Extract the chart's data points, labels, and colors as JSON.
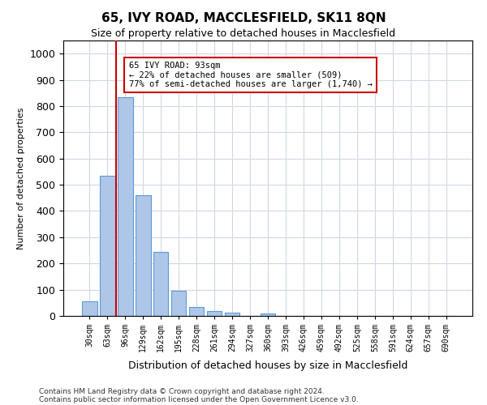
{
  "title": "65, IVY ROAD, MACCLESFIELD, SK11 8QN",
  "subtitle": "Size of property relative to detached houses in Macclesfield",
  "xlabel": "Distribution of detached houses by size in Macclesfield",
  "ylabel": "Number of detached properties",
  "bin_labels": [
    "30sqm",
    "63sqm",
    "96sqm",
    "129sqm",
    "162sqm",
    "195sqm",
    "228sqm",
    "261sqm",
    "294sqm",
    "327sqm",
    "360sqm",
    "393sqm",
    "426sqm",
    "459sqm",
    "492sqm",
    "525sqm",
    "558sqm",
    "591sqm",
    "624sqm",
    "657sqm",
    "690sqm"
  ],
  "bar_values": [
    55,
    535,
    835,
    460,
    245,
    97,
    35,
    20,
    12,
    0,
    8,
    0,
    0,
    0,
    0,
    0,
    0,
    0,
    0,
    0,
    0
  ],
  "bar_color": "#aec6e8",
  "bar_edgecolor": "#5b9bd5",
  "annotation_line1": "65 IVY ROAD: 93sqm",
  "annotation_line2": "← 22% of detached houses are smaller (509)",
  "annotation_line3": "77% of semi-detached houses are larger (1,740) →",
  "vline_color": "#cc0000",
  "vline_x": 1.5,
  "ylim": [
    0,
    1050
  ],
  "yticks": [
    0,
    100,
    200,
    300,
    400,
    500,
    600,
    700,
    800,
    900,
    1000
  ],
  "footer1": "Contains HM Land Registry data © Crown copyright and database right 2024.",
  "footer2": "Contains public sector information licensed under the Open Government Licence v3.0.",
  "background_color": "#ffffff",
  "grid_color": "#d0d8e4"
}
